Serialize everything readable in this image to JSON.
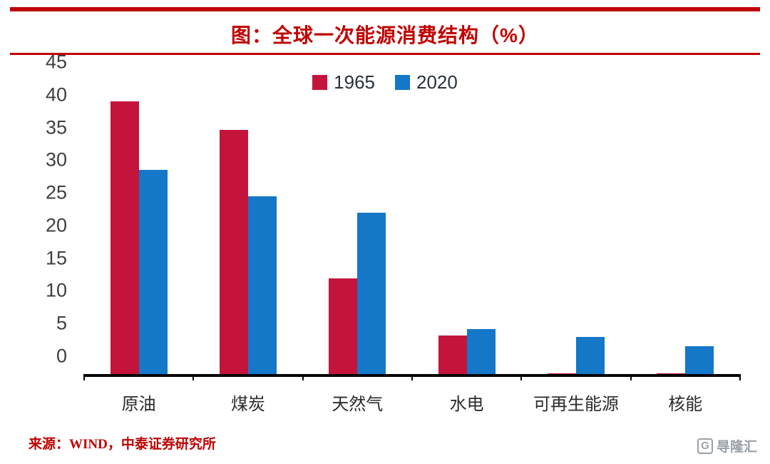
{
  "title": "图：全球一次能源消费结构（%）",
  "source": "来源：WIND，中泰证券研究所",
  "watermark": {
    "icon": "G",
    "text": "㝵隆汇"
  },
  "colors": {
    "accent_red": "#c00000",
    "series_1965": "#c4143c",
    "series_2020": "#1477c8",
    "axis": "#000000",
    "tick_text": "#3f3f3f"
  },
  "chart_data": {
    "type": "bar",
    "title": "图：全球一次能源消费结构（%）",
    "categories": [
      "原油",
      "煤炭",
      "天然气",
      "水电",
      "可再生能源",
      "核能"
    ],
    "series": [
      {
        "name": "1965",
        "color": "#c4143c",
        "values": [
          41.7,
          37.4,
          14.6,
          5.9,
          0.1,
          0.1
        ]
      },
      {
        "name": "2020",
        "color": "#1477c8",
        "values": [
          31.2,
          27.2,
          24.7,
          6.9,
          5.7,
          4.3
        ]
      }
    ],
    "xlabel": "",
    "ylabel": "",
    "ylim": [
      0,
      45
    ],
    "ytick_step": 5,
    "grid": false,
    "legend_position": "top-center"
  }
}
